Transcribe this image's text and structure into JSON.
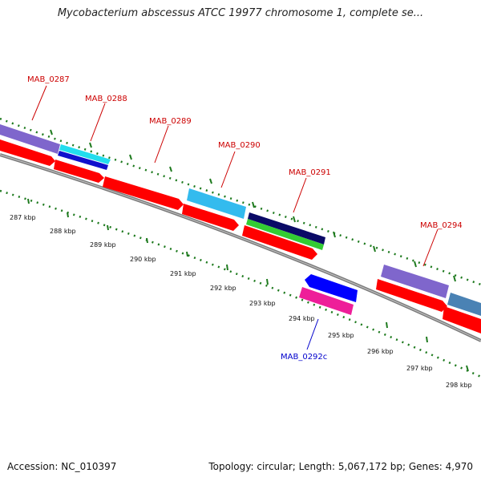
{
  "title": "Mycobacterium abscessus ATCC 19977 chromosome 1, complete se...",
  "footer": {
    "accession": "Accession: NC_010397",
    "summary": "Topology: circular; Length: 5,067,172 bp; Genes: 4,970"
  },
  "colors": {
    "forward_label": "#cc0000",
    "reverse_label": "#0000cc",
    "backbone": "#888888",
    "tick": "#1e7a1e",
    "cds": "#ff0000"
  },
  "gene_labels": [
    {
      "id": "g0287",
      "text": "MAB_0287",
      "strand": "forward"
    },
    {
      "id": "g0288",
      "text": "MAB_0288",
      "strand": "forward"
    },
    {
      "id": "g0289",
      "text": "MAB_0289",
      "strand": "forward"
    },
    {
      "id": "g0290",
      "text": "MAB_0290",
      "strand": "forward"
    },
    {
      "id": "g0291",
      "text": "MAB_0291",
      "strand": "forward"
    },
    {
      "id": "g0294",
      "text": "MAB_0294",
      "strand": "forward"
    },
    {
      "id": "g0292c",
      "text": "MAB_0292c",
      "strand": "reverse"
    }
  ],
  "tick_labels": [
    "287 kbp",
    "288 kbp",
    "289 kbp",
    "290 kbp",
    "291 kbp",
    "292 kbp",
    "293 kbp",
    "294 kbp",
    "295 kbp",
    "296 kbp",
    "297 kbp",
    "298 kbp"
  ]
}
